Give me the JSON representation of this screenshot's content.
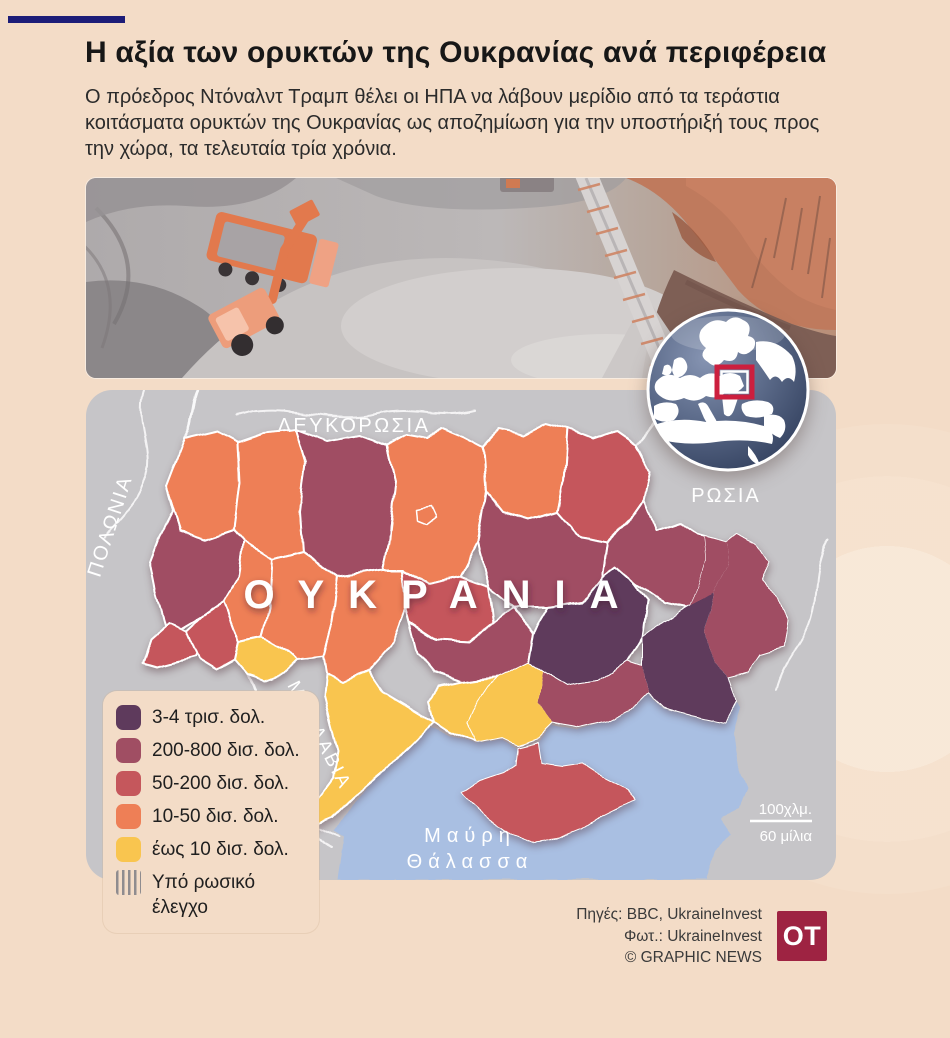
{
  "page": {
    "background": "#f3dcc7",
    "accent_bar_color": "#1c1c78"
  },
  "header": {
    "title": "Η αξία των ορυκτών της Ουκρανίας ανά περιφέρεια",
    "intro": "Ο πρόεδρος Ντόναλντ Τραμπ θέλει οι ΗΠΑ να λάβουν μερίδιο από τα τεράστια κοιτάσματα ορυκτών της Ουκρανίας ως αποζημίωση για την υποστήριξή τους προς την χώρα, τα τελευταία τρία χρόνια.",
    "title_color": "#171717"
  },
  "map": {
    "labels": {
      "belarus": "ΛΕΥΚΟΡΩΣΙΑ",
      "poland": "ΠΟΛΩΝΙΑ",
      "russia": "ΡΩΣΙΑ",
      "moldova": "ΜΟΛΔΑΒΙΑ",
      "country": "ΟΥΚΡΑΝΙΑ",
      "black_sea_1": "Μαύρη",
      "black_sea_2": "Θάλασσα"
    },
    "scale": {
      "km": "100χλμ.",
      "miles": "60 μίλια"
    },
    "palette": {
      "tier1": "#5e3a5c",
      "tier2": "#a04e63",
      "tier3": "#c5575c",
      "tier4": "#ee7f56",
      "tier5": "#f9c54f",
      "land": "#c6c5c8",
      "sea": "#a9bfe2",
      "border": "#ffffff"
    },
    "legend": [
      {
        "key": "tier1",
        "label": "3-4 τρισ. δολ."
      },
      {
        "key": "tier2",
        "label": "200-800 δισ. δολ."
      },
      {
        "key": "tier3",
        "label": "50-200 δισ. δολ."
      },
      {
        "key": "tier4",
        "label": "10-50 δισ. δολ."
      },
      {
        "key": "tier5",
        "label": "έως 10 δισ. δολ."
      },
      {
        "key": "hatch",
        "label": "Υπό ρωσικό έλεγχο"
      }
    ],
    "regions": [
      {
        "id": "volyn",
        "tier": "tier4",
        "occupied": false
      },
      {
        "id": "rivne",
        "tier": "tier4",
        "occupied": false
      },
      {
        "id": "zhytomyr",
        "tier": "tier2",
        "occupied": false
      },
      {
        "id": "kyiv-oblast",
        "tier": "tier4",
        "occupied": false
      },
      {
        "id": "kyiv-city",
        "tier": "tier4",
        "occupied": false
      },
      {
        "id": "chernihiv",
        "tier": "tier4",
        "occupied": false
      },
      {
        "id": "sumy",
        "tier": "tier3",
        "occupied": false
      },
      {
        "id": "lviv",
        "tier": "tier2",
        "occupied": false
      },
      {
        "id": "ternopil",
        "tier": "tier4",
        "occupied": false
      },
      {
        "id": "khmelnytskyi",
        "tier": "tier4",
        "occupied": false
      },
      {
        "id": "vinnytsia",
        "tier": "tier4",
        "occupied": false
      },
      {
        "id": "cherkasy",
        "tier": "tier3",
        "occupied": false
      },
      {
        "id": "poltava",
        "tier": "tier2",
        "occupied": false
      },
      {
        "id": "kirovohrad",
        "tier": "tier2",
        "occupied": false
      },
      {
        "id": "dnipropetrovsk",
        "tier": "tier1",
        "occupied": false
      },
      {
        "id": "kharkiv",
        "tier": "tier2",
        "occupied": false
      },
      {
        "id": "kharkiv-east",
        "tier": "tier2",
        "occupied": true
      },
      {
        "id": "luhansk",
        "tier": "tier2",
        "occupied": true
      },
      {
        "id": "donetsk",
        "tier": "tier1",
        "occupied": true
      },
      {
        "id": "zaporizhzhia",
        "tier": "tier2",
        "occupied": true
      },
      {
        "id": "kherson",
        "tier": "tier5",
        "occupied": true
      },
      {
        "id": "mykolaiv",
        "tier": "tier5",
        "occupied": false
      },
      {
        "id": "odesa",
        "tier": "tier5",
        "occupied": false
      },
      {
        "id": "zakarpattia",
        "tier": "tier3",
        "occupied": false
      },
      {
        "id": "ivano-frankivsk",
        "tier": "tier3",
        "occupied": false
      },
      {
        "id": "chernivtsi",
        "tier": "tier5",
        "occupied": false
      },
      {
        "id": "crimea",
        "tier": "tier3",
        "occupied": true
      }
    ]
  },
  "chart_data": {
    "type": "choropleth-map",
    "title": "Η αξία των ορυκτών της Ουκρανίας ανά περιφέρεια",
    "classes": [
      "3-4 τρισ. δολ.",
      "200-800 δισ. δολ.",
      "50-200 δισ. δολ.",
      "10-50 δισ. δολ.",
      "έως 10 δισ. δολ."
    ],
    "overlay_class": "Υπό ρωσικό έλεγχο",
    "legend_position": "bottom-left"
  },
  "footer": {
    "sources": "Πηγές: BBC, UkraineInvest",
    "photo_credit": "Φωτ.: UkraineInvest",
    "copyright": "© GRAPHIC NEWS",
    "logo_text": "OT",
    "logo_color": "#9e2342"
  }
}
